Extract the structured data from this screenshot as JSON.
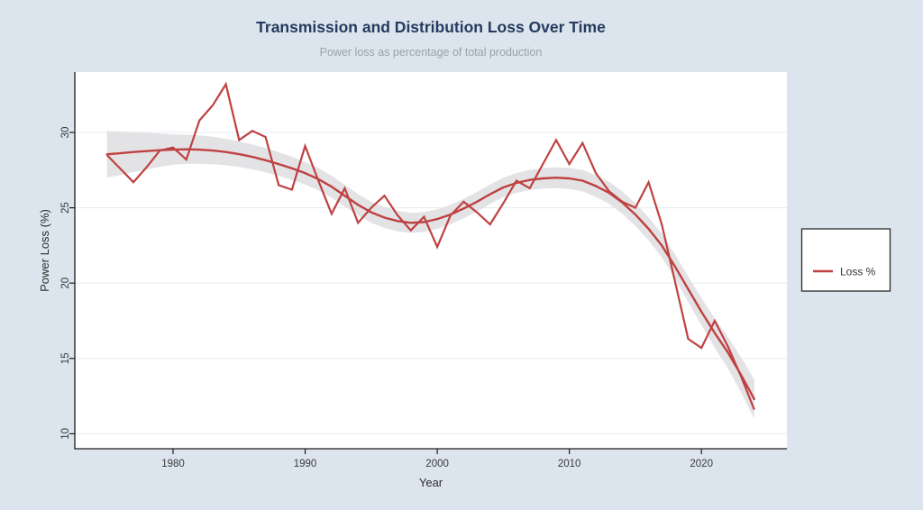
{
  "chart_data": {
    "type": "line",
    "title": "Transmission and Distribution Loss Over Time",
    "subtitle": "Power loss as percentage of total production",
    "xlabel": "Year",
    "ylabel": "Power Loss (%)",
    "x_ticks": [
      1980,
      1990,
      2000,
      2010,
      2020
    ],
    "y_ticks": [
      10,
      15,
      20,
      25,
      30
    ],
    "xlim": [
      1972.4,
      2026.5
    ],
    "ylim": [
      9.0,
      34.0
    ],
    "grid": "horizontal-only",
    "legend": {
      "label": "Loss %",
      "position": "right-outside"
    },
    "years": [
      1975,
      1976,
      1977,
      1978,
      1979,
      1980,
      1981,
      1982,
      1983,
      1984,
      1985,
      1986,
      1987,
      1988,
      1989,
      1990,
      1991,
      1992,
      1993,
      1994,
      1995,
      1996,
      1997,
      1998,
      1999,
      2000,
      2001,
      2002,
      2003,
      2004,
      2005,
      2006,
      2007,
      2008,
      2009,
      2010,
      2011,
      2012,
      2013,
      2014,
      2015,
      2016,
      2017,
      2018,
      2019,
      2020,
      2021,
      2022,
      2023,
      2024
    ],
    "series": [
      {
        "name": "Loss %",
        "style": "jagged",
        "values": [
          28.5,
          27.6,
          26.7,
          27.7,
          28.8,
          29.0,
          28.2,
          30.8,
          31.8,
          33.2,
          29.5,
          30.1,
          29.7,
          26.5,
          26.2,
          29.1,
          26.8,
          24.6,
          26.3,
          24.0,
          25.0,
          25.8,
          24.5,
          23.5,
          24.4,
          22.4,
          24.5,
          25.4,
          24.7,
          23.9,
          25.3,
          26.8,
          26.3,
          27.9,
          29.5,
          27.9,
          29.3,
          27.3,
          26.1,
          25.4,
          25.0,
          26.7,
          23.9,
          20.1,
          16.3,
          15.7,
          17.5,
          15.8,
          13.8,
          11.6
        ]
      },
      {
        "name": "Lowess smooth trend",
        "style": "smooth",
        "values": [
          28.55,
          28.62,
          28.7,
          28.76,
          28.82,
          28.86,
          28.88,
          28.86,
          28.8,
          28.7,
          28.56,
          28.38,
          28.16,
          27.9,
          27.62,
          27.3,
          26.9,
          26.4,
          25.8,
          25.2,
          24.7,
          24.35,
          24.12,
          24.0,
          24.05,
          24.25,
          24.55,
          24.95,
          25.4,
          25.9,
          26.35,
          26.65,
          26.85,
          26.95,
          27.0,
          26.95,
          26.8,
          26.45,
          26.0,
          25.35,
          24.55,
          23.6,
          22.5,
          21.1,
          19.6,
          18.1,
          16.7,
          15.4,
          13.9,
          12.3
        ]
      }
    ],
    "confidence_band": {
      "years": [
        1975,
        1980,
        1985,
        1990,
        1995,
        2000,
        2005,
        2010,
        2015,
        2018,
        2020,
        2022,
        2024
      ],
      "halfwidth": [
        1.55,
        1.0,
        0.85,
        0.75,
        0.7,
        0.65,
        0.65,
        0.7,
        0.75,
        0.8,
        0.9,
        1.05,
        1.3
      ]
    }
  },
  "colors": {
    "background": "#dce5ee",
    "plot_background": "#ffffff",
    "line_red": "#bf4141",
    "band_gray": "#e3e3e6",
    "grid": "#e7edf4",
    "axis": "#1b1b1b",
    "tick_text": "#3a3a3a",
    "axis_title_text": "#2b2b2b",
    "title": "#253a5e",
    "subtitle": "#99a1a9",
    "legend_border": "#2b2b2b"
  }
}
